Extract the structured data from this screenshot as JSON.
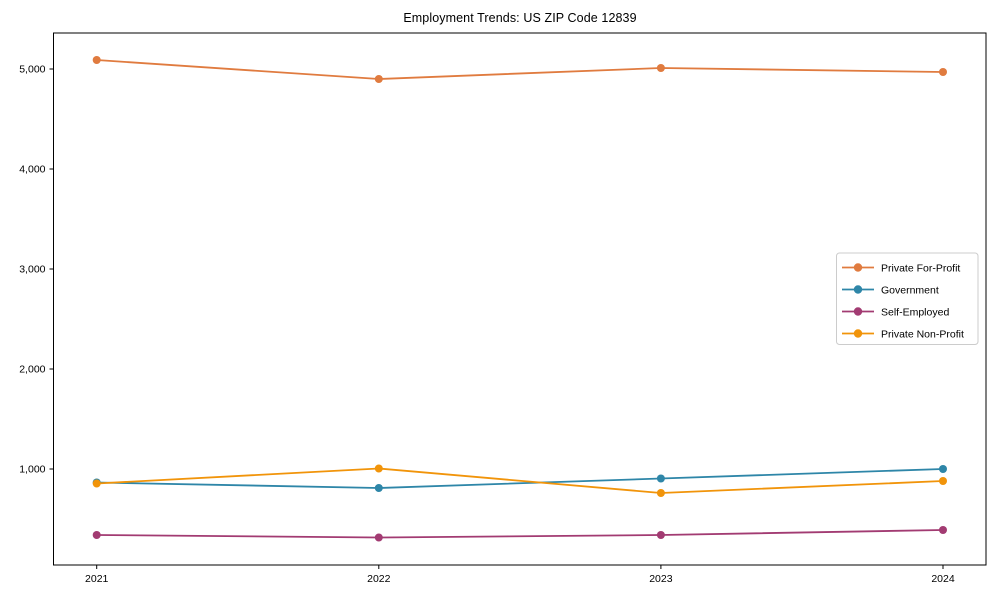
{
  "title": "Employment Trends: US ZIP Code 12839",
  "chart_data": {
    "type": "line",
    "title": "Employment Trends: US ZIP Code 12839",
    "xlabel": "",
    "ylabel": "",
    "x_categories": [
      "2021",
      "2022",
      "2023",
      "2024"
    ],
    "series": [
      {
        "name": "Private For-Profit",
        "color": "#E07B3F",
        "values": [
          5090,
          4900,
          5010,
          4970
        ]
      },
      {
        "name": "Government",
        "color": "#2E86A8",
        "values": [
          865,
          810,
          905,
          1000
        ]
      },
      {
        "name": "Self-Employed",
        "color": "#A23B72",
        "values": [
          340,
          315,
          340,
          390
        ]
      },
      {
        "name": "Private Non-Profit",
        "color": "#F1940A",
        "values": [
          855,
          1005,
          760,
          880
        ]
      }
    ],
    "y_ticks": [
      1000,
      2000,
      3000,
      4000,
      5000
    ],
    "y_tick_labels": [
      "1,000",
      "2,000",
      "3,000",
      "4,000",
      "5,000"
    ],
    "ylim": [
      40,
      5360
    ],
    "grid": false,
    "marker": "circle",
    "legend_position": "center-right",
    "axis_color": "#000000",
    "legend_border_color": "#cccccc"
  }
}
